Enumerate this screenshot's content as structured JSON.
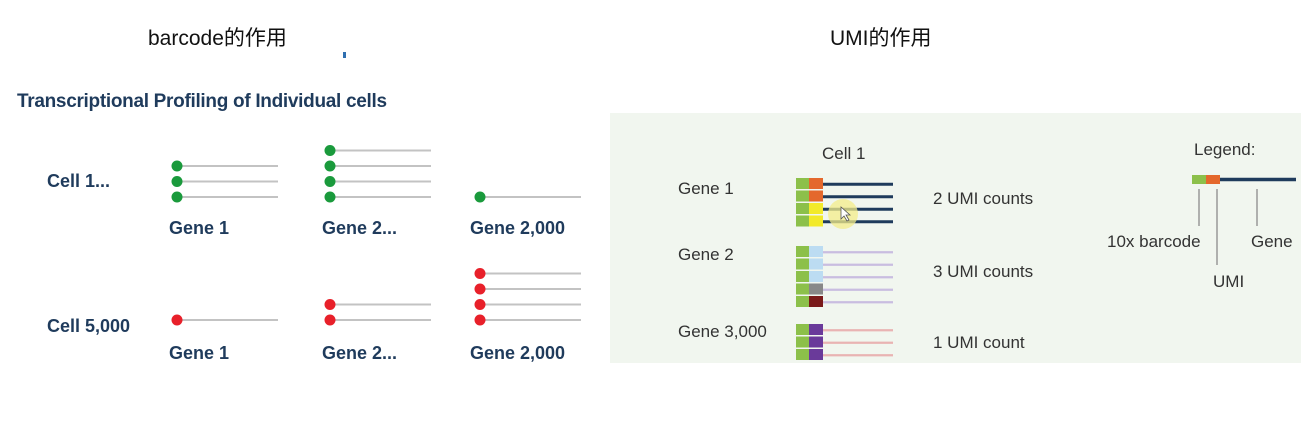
{
  "headings": {
    "left": "barcode的作用",
    "right": "UMI的作用"
  },
  "left_panel": {
    "title": "Transcriptional Profiling of Individual cells",
    "rows": [
      {
        "cell_label": "Cell 1...",
        "dot_color": "#1a9a3c",
        "genes": [
          {
            "label": "Gene 1",
            "count": 3
          },
          {
            "label": "Gene 2...",
            "count": 4
          },
          {
            "label": "Gene 2,000",
            "count": 1
          }
        ]
      },
      {
        "cell_label": "Cell 5,000",
        "dot_color": "#e8202a",
        "genes": [
          {
            "label": "Gene 1",
            "count": 1
          },
          {
            "label": "Gene 2...",
            "count": 2
          },
          {
            "label": "Gene 2,000",
            "count": 4
          }
        ]
      }
    ]
  },
  "right_panel": {
    "cell_label": "Cell 1",
    "genes": [
      {
        "label": "Gene 1",
        "umi_text": "2 UMI counts",
        "read_count": 4,
        "line_color": "#1f3b5c"
      },
      {
        "label": "Gene 2",
        "umi_text": "3 UMI counts",
        "read_count": 5,
        "line_color": "#c9bde0"
      },
      {
        "label": "Gene 3,000",
        "umi_text": "1 UMI count",
        "read_count": 3,
        "line_color": "#e9b3b3"
      }
    ],
    "legend": {
      "title": "Legend:",
      "barcode": "10x barcode",
      "umi": "UMI",
      "gene": "Gene"
    }
  }
}
